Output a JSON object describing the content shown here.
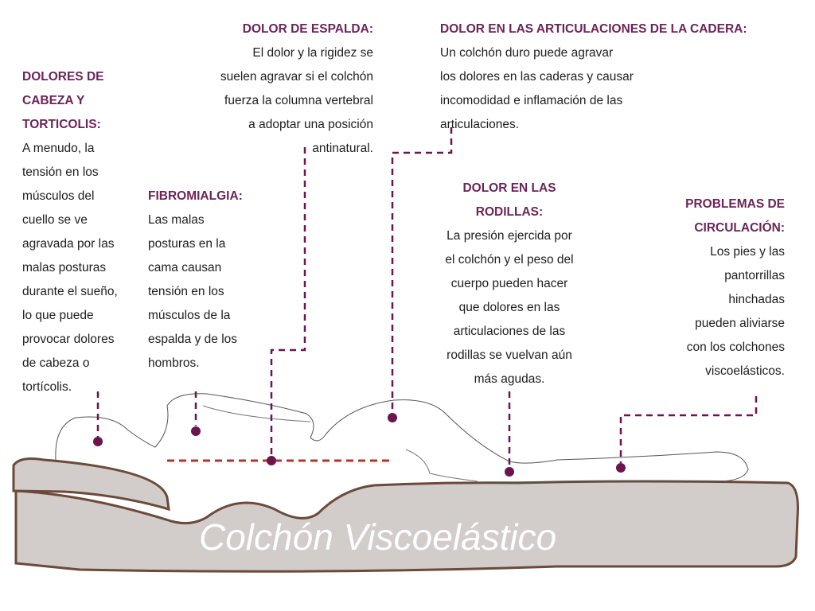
{
  "colors": {
    "heading": "#6b2458",
    "marker": "#6a1550",
    "spine_line": "#b5342a",
    "mattress_fill": "#d2cccb",
    "mattress_edge": "#6b4a3a"
  },
  "mattress_label": "Colchón Viscoelástico",
  "callouts": {
    "head": {
      "title": "DOLORES DE\nCABEZA Y\nTORTICOLIS:",
      "text": "A menudo, la\ntensión en los\nmúsculos del\ncuello se ve\nagravada por las\nmalas posturas\ndurante el sueño,\nlo que puede\nprovocar dolores\nde cabeza o\ntortícolis."
    },
    "fibro": {
      "title": "FIBROMIALGIA:",
      "text": "Las malas\nposturas en la\ncama causan\ntensión en los\nmúsculos de la\nespalda y de los\nhombros."
    },
    "back": {
      "title": "DOLOR DE ESPALDA:",
      "text": "El dolor y la rigidez se\nsuelen agravar si el colchón\nfuerza la columna vertebral\na adoptar una posición\nantinatural."
    },
    "hip": {
      "title": "DOLOR EN LAS ARTICULACIONES DE LA CADERA:",
      "text": "Un colchón duro puede agravar\nlos dolores en las caderas y causar\nincomodidad e inflamación de las\narticulaciones."
    },
    "knee": {
      "title": "DOLOR EN LAS\nRODILLAS:",
      "text": "La presión ejercida por\nel colchón y el peso del\ncuerpo pueden hacer\nque dolores en las\narticulaciones de las\nrodillas se vuelvan aún\nmás agudas."
    },
    "circ": {
      "title": "PROBLEMAS DE\nCIRCULACIÓN:",
      "text": "Los pies y las\npantorrillas\nhinchadas\npueden aliviarse\ncon los colchones\nviscoelásticos."
    }
  }
}
